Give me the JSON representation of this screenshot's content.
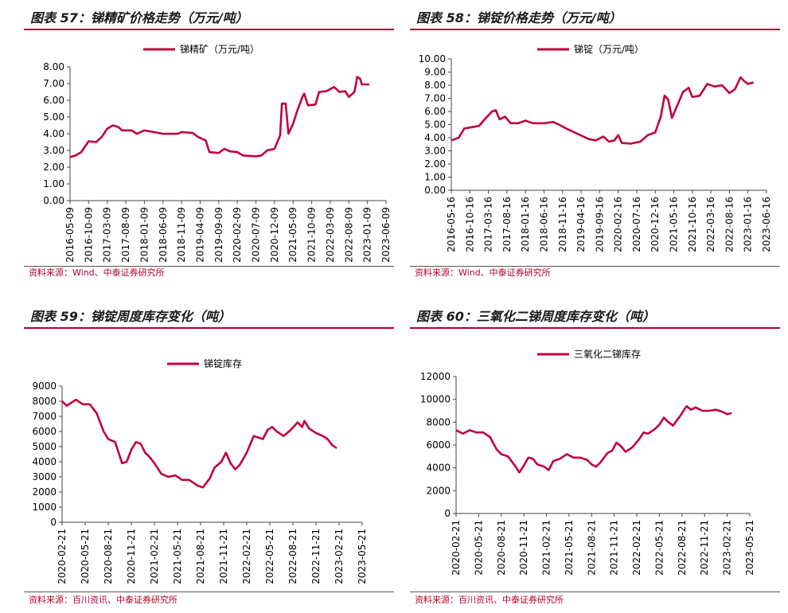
{
  "panels": [
    {
      "title": "图表 57：锑精矿价格走势（万元/吨）",
      "source": "资料来源：Wind、中泰证券研究所"
    },
    {
      "title": "图表 58：锑锭价格走势（万元/吨）",
      "source": "资料来源：Wind、中泰证券研究所"
    },
    {
      "title": "图表 59：锑锭周度库存变化（吨）",
      "source": "资料来源：百川资讯、中泰证券研究所"
    },
    {
      "title": "图表 60：三氧化二锑周度库存变化（吨）",
      "source": "资料来源：百川资讯、中泰证券研究所"
    }
  ],
  "colors": {
    "line": "#c0003c",
    "accent": "#b3002d"
  },
  "chart_data": [
    {
      "type": "line",
      "legend": "锑精矿（万元/吨）",
      "legend_position": "top-center",
      "grid": false,
      "ylim": [
        0,
        8
      ],
      "yticks": [
        "0.00",
        "1.00",
        "2.00",
        "3.00",
        "4.00",
        "5.00",
        "6.00",
        "7.00",
        "8.00"
      ],
      "xticks": [
        "2016-05-09",
        "2016-10-09",
        "2017-03-09",
        "2017-08-09",
        "2018-01-09",
        "2018-06-09",
        "2018-11-09",
        "2019-04-09",
        "2019-09-09",
        "2020-02-09",
        "2020-07-09",
        "2020-12-09",
        "2021-05-09",
        "2021-10-09",
        "2022-03-09",
        "2022-08-09",
        "2023-01-09",
        "2023-06-09"
      ],
      "series": [
        {
          "points": [
            [
              0,
              2.6
            ],
            [
              0.3,
              2.7
            ],
            [
              0.6,
              2.9
            ],
            [
              1.0,
              3.55
            ],
            [
              1.4,
              3.5
            ],
            [
              1.7,
              3.8
            ],
            [
              2.0,
              4.3
            ],
            [
              2.3,
              4.5
            ],
            [
              2.6,
              4.4
            ],
            [
              2.8,
              4.2
            ],
            [
              3.3,
              4.2
            ],
            [
              3.6,
              4.0
            ],
            [
              4.0,
              4.2
            ],
            [
              4.5,
              4.1
            ],
            [
              5.0,
              4.0
            ],
            [
              5.8,
              4.0
            ],
            [
              6.0,
              4.1
            ],
            [
              6.6,
              4.05
            ],
            [
              6.9,
              3.8
            ],
            [
              7.3,
              3.6
            ],
            [
              7.5,
              2.9
            ],
            [
              8.0,
              2.85
            ],
            [
              8.3,
              3.1
            ],
            [
              8.6,
              2.95
            ],
            [
              9.0,
              2.9
            ],
            [
              9.3,
              2.7
            ],
            [
              10.0,
              2.65
            ],
            [
              10.3,
              2.7
            ],
            [
              10.6,
              3.0
            ],
            [
              11.0,
              3.1
            ],
            [
              11.3,
              3.9
            ],
            [
              11.4,
              5.8
            ],
            [
              11.6,
              5.8
            ],
            [
              11.75,
              4.0
            ],
            [
              12.0,
              4.6
            ],
            [
              12.2,
              5.3
            ],
            [
              12.5,
              6.2
            ],
            [
              12.6,
              6.4
            ],
            [
              12.8,
              5.7
            ],
            [
              13.2,
              5.75
            ],
            [
              13.4,
              6.5
            ],
            [
              13.8,
              6.55
            ],
            [
              14.2,
              6.8
            ],
            [
              14.5,
              6.5
            ],
            [
              14.8,
              6.55
            ],
            [
              15.0,
              6.2
            ],
            [
              15.3,
              6.5
            ],
            [
              15.45,
              7.4
            ],
            [
              15.6,
              7.3
            ],
            [
              15.7,
              6.95
            ],
            [
              16.1,
              6.95
            ]
          ]
        }
      ]
    },
    {
      "type": "line",
      "legend": "锑锭（万元/吨）",
      "legend_position": "top-center",
      "grid": false,
      "ylim": [
        0,
        10
      ],
      "yticks": [
        "0.00",
        "1.00",
        "2.00",
        "3.00",
        "4.00",
        "5.00",
        "6.00",
        "7.00",
        "8.00",
        "9.00",
        "10.00"
      ],
      "xticks": [
        "2016-05-16",
        "2016-10-16",
        "2017-03-16",
        "2017-08-16",
        "2018-01-16",
        "2018-06-16",
        "2018-11-16",
        "2019-04-16",
        "2019-09-16",
        "2020-02-16",
        "2020-07-16",
        "2020-12-16",
        "2021-05-16",
        "2021-10-16",
        "2022-03-16",
        "2022-08-16",
        "2023-01-16",
        "2023-06-16"
      ],
      "series": [
        {
          "points": [
            [
              0,
              3.8
            ],
            [
              0.4,
              4.0
            ],
            [
              0.7,
              4.7
            ],
            [
              1.1,
              4.8
            ],
            [
              1.5,
              4.9
            ],
            [
              1.8,
              5.4
            ],
            [
              2.2,
              6.0
            ],
            [
              2.4,
              6.1
            ],
            [
              2.6,
              5.4
            ],
            [
              2.9,
              5.6
            ],
            [
              3.2,
              5.1
            ],
            [
              3.6,
              5.1
            ],
            [
              4.0,
              5.3
            ],
            [
              4.4,
              5.1
            ],
            [
              5.0,
              5.1
            ],
            [
              5.5,
              5.2
            ],
            [
              5.8,
              5.0
            ],
            [
              6.2,
              4.7
            ],
            [
              6.8,
              4.3
            ],
            [
              7.4,
              3.9
            ],
            [
              7.8,
              3.8
            ],
            [
              8.2,
              4.1
            ],
            [
              8.5,
              3.7
            ],
            [
              8.8,
              3.8
            ],
            [
              9.0,
              4.2
            ],
            [
              9.2,
              3.6
            ],
            [
              9.7,
              3.55
            ],
            [
              10.2,
              3.7
            ],
            [
              10.6,
              4.2
            ],
            [
              11.0,
              4.4
            ],
            [
              11.3,
              5.6
            ],
            [
              11.5,
              7.2
            ],
            [
              11.7,
              6.9
            ],
            [
              11.9,
              5.5
            ],
            [
              12.2,
              6.5
            ],
            [
              12.5,
              7.5
            ],
            [
              12.8,
              7.8
            ],
            [
              13.0,
              7.1
            ],
            [
              13.4,
              7.2
            ],
            [
              13.8,
              8.1
            ],
            [
              14.2,
              7.9
            ],
            [
              14.6,
              8.0
            ],
            [
              15.0,
              7.4
            ],
            [
              15.3,
              7.7
            ],
            [
              15.6,
              8.6
            ],
            [
              15.8,
              8.3
            ],
            [
              16.0,
              8.1
            ],
            [
              16.3,
              8.2
            ]
          ]
        }
      ]
    },
    {
      "type": "line",
      "legend": "锑锭库存",
      "legend_position": "top-center",
      "grid": false,
      "ylim": [
        0,
        9000
      ],
      "yticks": [
        "0",
        "1000",
        "2000",
        "3000",
        "4000",
        "5000",
        "6000",
        "7000",
        "8000",
        "9000"
      ],
      "xticks": [
        "2020-02-21",
        "2020-05-21",
        "2020-08-21",
        "2020-11-21",
        "2021-02-21",
        "2021-05-21",
        "2021-08-21",
        "2021-11-21",
        "2022-02-21",
        "2022-05-21",
        "2022-08-21",
        "2022-11-21",
        "2023-02-21",
        "2023-05-21"
      ],
      "series": [
        {
          "points": [
            [
              0,
              8000
            ],
            [
              0.2,
              7700
            ],
            [
              0.6,
              8100
            ],
            [
              0.9,
              7800
            ],
            [
              1.2,
              7800
            ],
            [
              1.5,
              7200
            ],
            [
              1.8,
              6000
            ],
            [
              2.0,
              5500
            ],
            [
              2.3,
              5300
            ],
            [
              2.6,
              3900
            ],
            [
              2.8,
              4000
            ],
            [
              3.0,
              4800
            ],
            [
              3.2,
              5300
            ],
            [
              3.4,
              5200
            ],
            [
              3.6,
              4600
            ],
            [
              3.8,
              4300
            ],
            [
              4.0,
              3900
            ],
            [
              4.3,
              3200
            ],
            [
              4.6,
              3000
            ],
            [
              4.9,
              3100
            ],
            [
              5.2,
              2800
            ],
            [
              5.5,
              2800
            ],
            [
              5.7,
              2600
            ],
            [
              5.9,
              2400
            ],
            [
              6.1,
              2300
            ],
            [
              6.4,
              2900
            ],
            [
              6.6,
              3600
            ],
            [
              6.9,
              4000
            ],
            [
              7.1,
              4600
            ],
            [
              7.3,
              3900
            ],
            [
              7.5,
              3500
            ],
            [
              7.7,
              3800
            ],
            [
              8.0,
              4600
            ],
            [
              8.3,
              5700
            ],
            [
              8.5,
              5600
            ],
            [
              8.7,
              5500
            ],
            [
              8.9,
              6100
            ],
            [
              9.1,
              6300
            ],
            [
              9.3,
              6000
            ],
            [
              9.6,
              5700
            ],
            [
              9.9,
              6100
            ],
            [
              10.2,
              6600
            ],
            [
              10.4,
              6300
            ],
            [
              10.5,
              6700
            ],
            [
              10.7,
              6200
            ],
            [
              11.0,
              5900
            ],
            [
              11.3,
              5700
            ],
            [
              11.5,
              5500
            ],
            [
              11.7,
              5100
            ],
            [
              11.9,
              4900
            ]
          ]
        }
      ]
    },
    {
      "type": "line",
      "legend": "三氧化二锑库存",
      "legend_position": "top-center",
      "grid": false,
      "ylim": [
        0,
        12000
      ],
      "yticks": [
        "0",
        "2000",
        "4000",
        "6000",
        "8000",
        "10000",
        "12000"
      ],
      "xticks": [
        "2020-02-21",
        "2020-05-21",
        "2020-08-21",
        "2020-11-21",
        "2021-02-21",
        "2021-05-21",
        "2021-08-21",
        "2021-11-21",
        "2022-02-21",
        "2022-05-21",
        "2022-08-21",
        "2022-11-21",
        "2023-02-21",
        "2023-05-21"
      ],
      "series": [
        {
          "points": [
            [
              0,
              7300
            ],
            [
              0.3,
              7000
            ],
            [
              0.6,
              7300
            ],
            [
              0.9,
              7100
            ],
            [
              1.2,
              7100
            ],
            [
              1.5,
              6700
            ],
            [
              1.8,
              5600
            ],
            [
              2.0,
              5200
            ],
            [
              2.3,
              5000
            ],
            [
              2.6,
              4200
            ],
            [
              2.8,
              3600
            ],
            [
              3.0,
              4200
            ],
            [
              3.2,
              4900
            ],
            [
              3.4,
              4800
            ],
            [
              3.6,
              4300
            ],
            [
              3.9,
              4100
            ],
            [
              4.1,
              3800
            ],
            [
              4.3,
              4600
            ],
            [
              4.6,
              4800
            ],
            [
              4.9,
              5200
            ],
            [
              5.2,
              4900
            ],
            [
              5.5,
              4900
            ],
            [
              5.8,
              4700
            ],
            [
              6.0,
              4300
            ],
            [
              6.2,
              4100
            ],
            [
              6.4,
              4500
            ],
            [
              6.7,
              5300
            ],
            [
              6.9,
              5500
            ],
            [
              7.1,
              6200
            ],
            [
              7.3,
              5900
            ],
            [
              7.5,
              5400
            ],
            [
              7.8,
              5800
            ],
            [
              8.1,
              6500
            ],
            [
              8.3,
              7100
            ],
            [
              8.5,
              7000
            ],
            [
              8.8,
              7400
            ],
            [
              9.0,
              7800
            ],
            [
              9.2,
              8400
            ],
            [
              9.4,
              8000
            ],
            [
              9.6,
              7700
            ],
            [
              9.9,
              8500
            ],
            [
              10.2,
              9400
            ],
            [
              10.4,
              9100
            ],
            [
              10.6,
              9300
            ],
            [
              10.9,
              9000
            ],
            [
              11.2,
              9000
            ],
            [
              11.5,
              9100
            ],
            [
              11.8,
              8900
            ],
            [
              12.0,
              8700
            ],
            [
              12.2,
              8800
            ]
          ]
        }
      ]
    }
  ]
}
